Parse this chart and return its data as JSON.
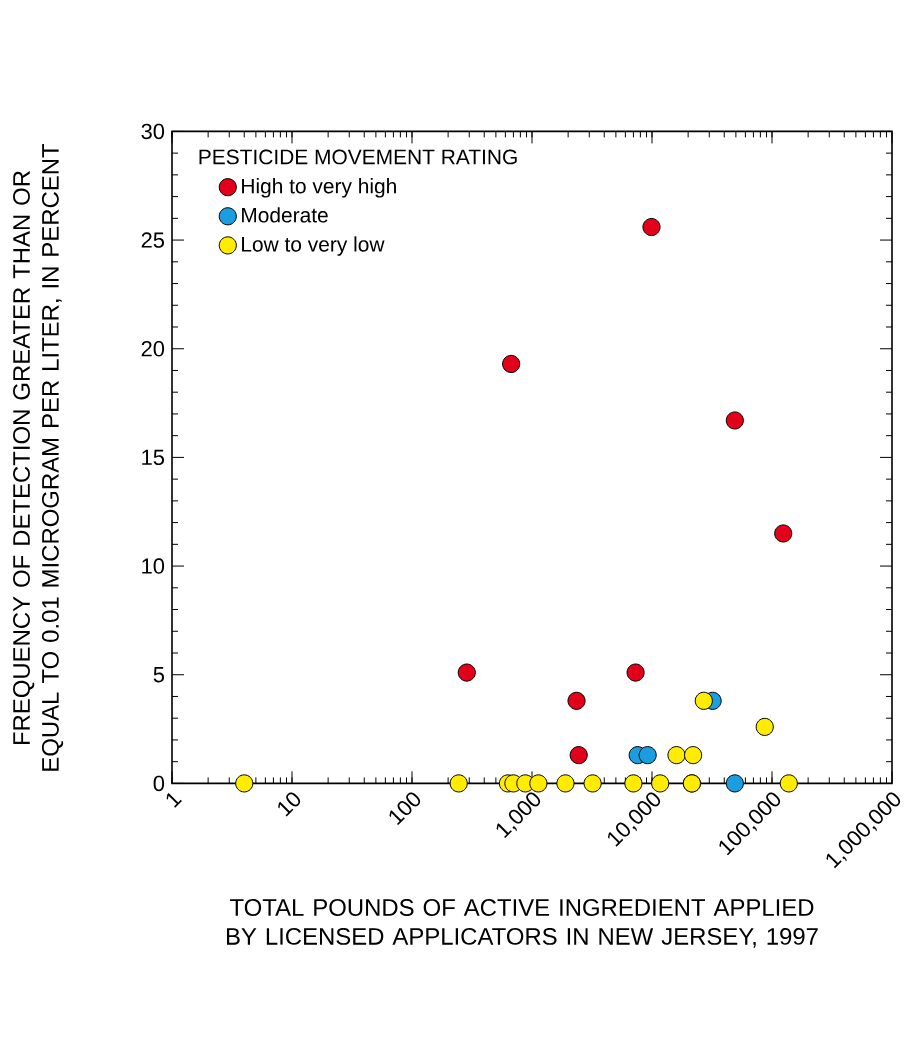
{
  "chart_data": {
    "type": "scatter",
    "xlabel": "TOTAL POUNDS OF ACTIVE INGREDIENT APPLIED BY LICENSED APPLICATORS IN NEW JERSEY, 1997",
    "ylabel": "FREQUENCY OF DETECTION GREATER THAN OR EQUAL TO 0.01 MICROGRAM PER LITER, IN PERCENT",
    "legend_title": "PESTICIDE MOVEMENT RATING",
    "log": "x",
    "legend": "top left",
    "marker": "circle",
    "grid": false,
    "xlim": [
      1,
      1000000
    ],
    "ylim": [
      0,
      30
    ],
    "xticks": [
      1,
      10,
      100,
      {
        "value": 1000,
        "label": "1,000"
      },
      {
        "value": 10000,
        "label": "10,000"
      },
      {
        "value": 100000,
        "label": "100,000"
      },
      {
        "value": 1000000,
        "label": "1,000,000"
      }
    ],
    "yticks": [
      0,
      5,
      10,
      15,
      20,
      25,
      30
    ],
    "series": [
      {
        "name": "High to very high",
        "color": "#e2001a",
        "x": [
          286,
          2350,
          2450,
          7300,
          124000,
          9900,
          670,
          49000
        ],
        "values": [
          5.1,
          3.8,
          1.3,
          5.1,
          11.5,
          25.6,
          19.3,
          16.7
        ]
      },
      {
        "name": "Moderate",
        "color": "#1a9ee0",
        "x": [
          7600,
          9200,
          32000,
          49000
        ],
        "values": [
          1.3,
          1.3,
          3.8,
          0
        ]
      },
      {
        "name": "Low to very low",
        "color": "#ffec00",
        "x": [
          4,
          245,
          630,
          700,
          880,
          1130,
          1900,
          3200,
          7000,
          11700,
          21500,
          21500,
          138000,
          16000,
          22000,
          27000,
          87000
        ],
        "values": [
          0,
          0,
          0,
          0,
          0,
          0,
          0,
          0,
          0,
          0,
          0,
          0,
          0,
          1.3,
          1.3,
          3.8,
          2.6
        ]
      }
    ]
  }
}
